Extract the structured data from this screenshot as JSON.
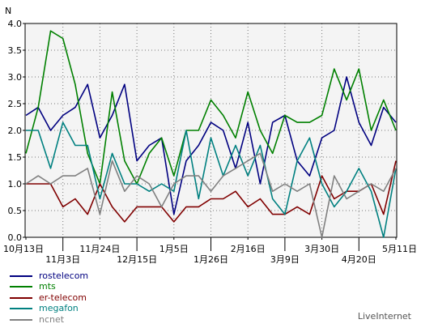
{
  "chart_data": {
    "type": "line",
    "ylabel": "N",
    "ylim": [
      0,
      4
    ],
    "yticks": [
      "0.0",
      "0.5",
      "1.0",
      "1.5",
      "2.0",
      "2.5",
      "3.0",
      "3.5",
      "4.0"
    ],
    "xticks": [
      {
        "label": "10月13日",
        "index": 0,
        "row": 0
      },
      {
        "label": "11月3日",
        "index": 3,
        "row": 1
      },
      {
        "label": "11月24日",
        "index": 6,
        "row": 0
      },
      {
        "label": "12月15日",
        "index": 9,
        "row": 1
      },
      {
        "label": "1月5日",
        "index": 12,
        "row": 0
      },
      {
        "label": "1月26日",
        "index": 15,
        "row": 1
      },
      {
        "label": "2月16日",
        "index": 18,
        "row": 0
      },
      {
        "label": "3月9日",
        "index": 21,
        "row": 1
      },
      {
        "label": "3月30日",
        "index": 24,
        "row": 0
      },
      {
        "label": "4月20日",
        "index": 27,
        "row": 1
      },
      {
        "label": "5月11日",
        "index": 30,
        "row": 0
      }
    ],
    "series": [
      {
        "name": "rostelecom",
        "color": "#000080",
        "values": [
          2.28,
          2.43,
          2.0,
          2.28,
          2.43,
          2.86,
          1.86,
          2.28,
          2.86,
          1.43,
          1.72,
          1.86,
          0.43,
          1.43,
          1.72,
          2.15,
          2.0,
          1.29,
          2.15,
          1.0,
          2.15,
          2.28,
          1.43,
          1.15,
          1.86,
          2.0,
          3.0,
          2.15,
          1.72,
          2.43,
          2.15
        ]
      },
      {
        "name": "mts",
        "color": "#008000",
        "values": [
          1.57,
          2.43,
          3.86,
          3.72,
          2.86,
          1.57,
          1.0,
          2.72,
          1.43,
          1.0,
          1.57,
          1.86,
          1.15,
          2.0,
          2.0,
          2.57,
          2.28,
          1.86,
          2.72,
          2.0,
          1.57,
          2.28,
          2.15,
          2.15,
          2.28,
          3.15,
          2.57,
          3.15,
          2.0,
          2.57,
          2.0
        ]
      },
      {
        "name": "er-telecom",
        "color": "#800000",
        "values": [
          1.0,
          1.0,
          1.0,
          0.57,
          0.72,
          0.43,
          1.0,
          0.57,
          0.29,
          0.57,
          0.57,
          0.57,
          0.29,
          0.57,
          0.57,
          0.72,
          0.72,
          0.86,
          0.57,
          0.72,
          0.43,
          0.43,
          0.57,
          0.43,
          1.15,
          0.72,
          0.86,
          0.86,
          1.0,
          0.43,
          1.43
        ]
      },
      {
        "name": "megafon",
        "color": "#008080",
        "values": [
          2.0,
          2.0,
          1.29,
          2.15,
          1.72,
          1.72,
          0.72,
          1.57,
          1.0,
          1.0,
          0.86,
          1.0,
          0.86,
          2.0,
          0.72,
          1.86,
          1.15,
          1.72,
          1.15,
          1.72,
          0.72,
          0.43,
          1.43,
          1.86,
          1.0,
          0.57,
          0.86,
          1.29,
          0.86,
          0.0,
          1.29
        ]
      },
      {
        "name": "ncnet",
        "color": "#808080",
        "values": [
          1.0,
          1.15,
          1.0,
          1.15,
          1.15,
          1.29,
          0.43,
          1.43,
          0.86,
          1.15,
          1.0,
          0.57,
          1.0,
          1.15,
          1.15,
          0.86,
          1.15,
          1.29,
          1.43,
          1.57,
          0.86,
          1.0,
          0.86,
          1.0,
          0.0,
          1.15,
          0.72,
          0.86,
          1.0,
          0.86,
          1.29
        ]
      }
    ]
  },
  "brand": "LiveInternet"
}
